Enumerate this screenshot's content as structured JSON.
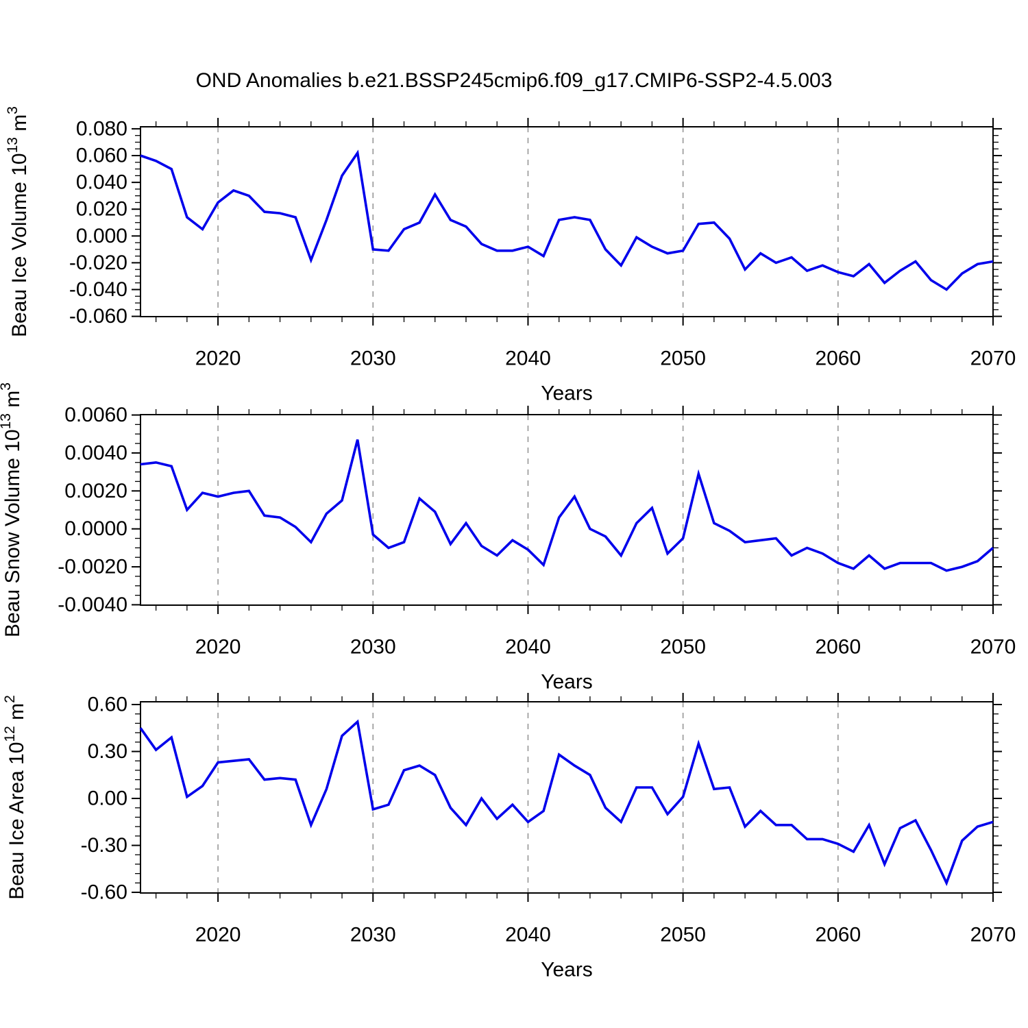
{
  "title": "OND Anomalies b.e21.BSSP245cmip6.f09_g17.CMIP6-SSP2-4.5.003",
  "colors": {
    "line": "#0000EB",
    "grid": "#909090",
    "axis": "#000000",
    "background": "#FFFFFF"
  },
  "years": [
    2015,
    2016,
    2017,
    2018,
    2019,
    2020,
    2021,
    2022,
    2023,
    2024,
    2025,
    2026,
    2027,
    2028,
    2029,
    2030,
    2031,
    2032,
    2033,
    2034,
    2035,
    2036,
    2037,
    2038,
    2039,
    2040,
    2041,
    2042,
    2043,
    2044,
    2045,
    2046,
    2047,
    2048,
    2049,
    2050,
    2051,
    2052,
    2053,
    2054,
    2055,
    2056,
    2057,
    2058,
    2059,
    2060,
    2061,
    2062,
    2063,
    2064,
    2065,
    2066,
    2067,
    2068,
    2069,
    2070
  ],
  "chart_data": [
    {
      "type": "line",
      "id": "ice_volume",
      "title": "OND Anomalies b.e21.BSSP245cmip6.f09_g17.CMIP6-SSP2-4.5.003",
      "ylabel": "Beau Ice Volume 10^13 m^3",
      "ylabel_parts": [
        {
          "t": "Beau Ice Volume 10"
        },
        {
          "t": "13",
          "sup": true
        },
        {
          "t": " m"
        },
        {
          "t": "3",
          "sup": true
        }
      ],
      "xlabel": "Years",
      "xlim": [
        2015,
        2070
      ],
      "ylim": [
        -0.0602,
        0.0815
      ],
      "xticks": [
        2020,
        2030,
        2040,
        2050,
        2060,
        2070
      ],
      "xtick_minor_step": 2,
      "grid_years": [
        2020,
        2030,
        2040,
        2050,
        2060
      ],
      "yticks": [
        {
          "value": 0.08,
          "label": "0.080"
        },
        {
          "value": 0.06,
          "label": "0.060"
        },
        {
          "value": 0.04,
          "label": "0.040"
        },
        {
          "value": 0.02,
          "label": "0.020"
        },
        {
          "value": 0.0,
          "label": "0.000"
        },
        {
          "value": -0.02,
          "label": "-0.020"
        },
        {
          "value": -0.04,
          "label": "-0.040"
        },
        {
          "value": -0.06,
          "label": "-0.060"
        }
      ],
      "ytick_minor_step": 0.005,
      "values": [
        0.06,
        0.056,
        0.05,
        0.014,
        0.005,
        0.025,
        0.034,
        0.03,
        0.018,
        0.017,
        0.014,
        -0.018,
        0.012,
        0.045,
        0.062,
        -0.01,
        -0.011,
        0.005,
        0.01,
        0.031,
        0.012,
        0.007,
        -0.006,
        -0.011,
        -0.011,
        -0.008,
        -0.015,
        0.012,
        0.014,
        0.012,
        -0.01,
        -0.022,
        -0.001,
        -0.008,
        -0.013,
        -0.011,
        0.009,
        0.01,
        -0.002,
        -0.025,
        -0.013,
        -0.02,
        -0.016,
        -0.026,
        -0.022,
        -0.027,
        -0.03,
        -0.021,
        -0.035,
        -0.026,
        -0.019,
        -0.033,
        -0.04,
        -0.028,
        -0.021,
        -0.019
      ]
    },
    {
      "type": "line",
      "id": "snow_volume",
      "ylabel": "Beau Snow Volume 10^13 m^3",
      "ylabel_parts": [
        {
          "t": "Beau Snow Volume 10"
        },
        {
          "t": "13",
          "sup": true
        },
        {
          "t": " m"
        },
        {
          "t": "3",
          "sup": true
        }
      ],
      "xlabel": "Years",
      "xlim": [
        2015,
        2070
      ],
      "ylim": [
        -0.00402,
        0.00602
      ],
      "xticks": [
        2020,
        2030,
        2040,
        2050,
        2060,
        2070
      ],
      "xtick_minor_step": 2,
      "grid_years": [
        2020,
        2030,
        2040,
        2050,
        2060
      ],
      "yticks": [
        {
          "value": 0.006,
          "label": "0.0060"
        },
        {
          "value": 0.004,
          "label": "0.0040"
        },
        {
          "value": 0.002,
          "label": "0.0020"
        },
        {
          "value": 0.0,
          "label": "0.0000"
        },
        {
          "value": -0.002,
          "label": "-0.0020"
        },
        {
          "value": -0.004,
          "label": "-0.0040"
        }
      ],
      "ytick_minor_step": 0.0005,
      "values": [
        0.0034,
        0.0035,
        0.0033,
        0.001,
        0.0019,
        0.0017,
        0.0019,
        0.002,
        0.0007,
        0.0006,
        0.0001,
        -0.0007,
        0.0008,
        0.0015,
        0.0047,
        -0.0003,
        -0.001,
        -0.0007,
        0.0016,
        0.0009,
        -0.0008,
        0.0003,
        -0.0009,
        -0.0014,
        -0.0006,
        -0.0011,
        -0.0019,
        0.0006,
        0.0017,
        0.0,
        -0.0004,
        -0.0014,
        0.0003,
        0.0011,
        -0.0013,
        -0.0005,
        0.0029,
        0.0003,
        -0.0001,
        -0.0007,
        -0.0006,
        -0.0005,
        -0.0014,
        -0.001,
        -0.0013,
        -0.0018,
        -0.0021,
        -0.0014,
        -0.0021,
        -0.0018,
        -0.0018,
        -0.0018,
        -0.0022,
        -0.002,
        -0.0017,
        -0.001
      ]
    },
    {
      "type": "line",
      "id": "ice_area",
      "ylabel": "Beau Ice Area 10^12 m^2",
      "ylabel_parts": [
        {
          "t": "Beau Ice Area 10"
        },
        {
          "t": "12",
          "sup": true
        },
        {
          "t": " m"
        },
        {
          "t": "2",
          "sup": true
        }
      ],
      "xlabel": "Years",
      "xlim": [
        2015,
        2070
      ],
      "ylim": [
        -0.6042,
        0.6176
      ],
      "xticks": [
        2020,
        2030,
        2040,
        2050,
        2060,
        2070
      ],
      "xtick_minor_step": 2,
      "grid_years": [
        2020,
        2030,
        2040,
        2050,
        2060
      ],
      "yticks": [
        {
          "value": 0.6,
          "label": "0.60"
        },
        {
          "value": 0.3,
          "label": "0.30"
        },
        {
          "value": 0.0,
          "label": "0.00"
        },
        {
          "value": -0.3,
          "label": "-0.30"
        },
        {
          "value": -0.6,
          "label": "-0.60"
        }
      ],
      "ytick_minor_step": 0.06,
      "values": [
        0.45,
        0.31,
        0.39,
        0.01,
        0.08,
        0.23,
        0.24,
        0.25,
        0.12,
        0.13,
        0.12,
        -0.17,
        0.06,
        0.4,
        0.49,
        -0.07,
        -0.04,
        0.18,
        0.21,
        0.15,
        -0.06,
        -0.17,
        0.0,
        -0.13,
        -0.04,
        -0.15,
        -0.08,
        0.28,
        0.21,
        0.15,
        -0.06,
        -0.15,
        0.07,
        0.07,
        -0.1,
        0.01,
        0.35,
        0.06,
        0.07,
        -0.18,
        -0.08,
        -0.17,
        -0.17,
        -0.26,
        -0.26,
        -0.29,
        -0.34,
        -0.17,
        -0.42,
        -0.19,
        -0.14,
        -0.33,
        -0.54,
        -0.27,
        -0.18,
        -0.15
      ]
    }
  ]
}
